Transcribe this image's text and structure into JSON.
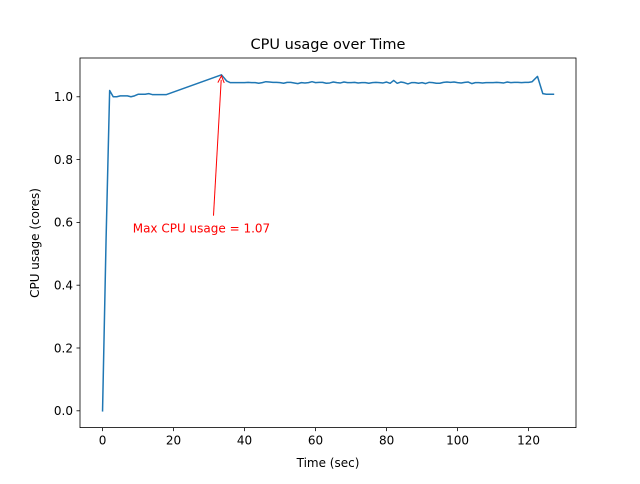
{
  "chart_data": {
    "type": "line",
    "title": "CPU usage over Time",
    "xlabel": "Time (sec)",
    "ylabel": "CPU usage (cores)",
    "xlim": [
      -6.35,
      133.35
    ],
    "ylim": [
      -0.0535,
      1.1235
    ],
    "xticks": [
      0,
      20,
      40,
      60,
      80,
      100,
      120
    ],
    "xtick_labels": [
      "0",
      "20",
      "40",
      "60",
      "80",
      "100",
      "120"
    ],
    "yticks": [
      0.0,
      0.2,
      0.4,
      0.6,
      0.8,
      1.0
    ],
    "ytick_labels": [
      "0.0",
      "0.2",
      "0.4",
      "0.6",
      "0.8",
      "1.0"
    ],
    "grid": false,
    "series": [
      {
        "color": "#1f77b4",
        "x": [
          0,
          1,
          2,
          3,
          4,
          5,
          6,
          7,
          8,
          9,
          10,
          11,
          12,
          13,
          14,
          15,
          16,
          17,
          18,
          33.5,
          35,
          36,
          37,
          38,
          39,
          40,
          41,
          42,
          43,
          44,
          45,
          46,
          47,
          48,
          49,
          50,
          51,
          52,
          53,
          54,
          55,
          56,
          57,
          58,
          59,
          60,
          61,
          62,
          63,
          64,
          65,
          66,
          67,
          68,
          69,
          70,
          71,
          72,
          73,
          74,
          75,
          76,
          77,
          78,
          79,
          80,
          81,
          82,
          83,
          84,
          85,
          86,
          87,
          88,
          89,
          90,
          91,
          92,
          93,
          94,
          95,
          96,
          97,
          98,
          99,
          100,
          101,
          102,
          103,
          104,
          105,
          106,
          107,
          108,
          109,
          110,
          111,
          112,
          113,
          114,
          115,
          116,
          117,
          118,
          119,
          120,
          121,
          122.5,
          124,
          125,
          126,
          127
        ],
        "y": [
          0.0,
          0.55,
          1.02,
          1.0,
          1.0,
          1.003,
          1.003,
          1.003,
          1.0,
          1.003,
          1.008,
          1.008,
          1.008,
          1.01,
          1.007,
          1.007,
          1.007,
          1.007,
          1.007,
          1.07,
          1.05,
          1.045,
          1.045,
          1.045,
          1.045,
          1.045,
          1.046,
          1.045,
          1.045,
          1.043,
          1.045,
          1.048,
          1.047,
          1.046,
          1.046,
          1.045,
          1.043,
          1.046,
          1.046,
          1.044,
          1.042,
          1.045,
          1.044,
          1.045,
          1.048,
          1.045,
          1.046,
          1.046,
          1.043,
          1.044,
          1.047,
          1.045,
          1.044,
          1.047,
          1.045,
          1.045,
          1.046,
          1.044,
          1.045,
          1.045,
          1.043,
          1.045,
          1.046,
          1.045,
          1.044,
          1.047,
          1.043,
          1.052,
          1.043,
          1.047,
          1.045,
          1.041,
          1.045,
          1.045,
          1.043,
          1.045,
          1.042,
          1.046,
          1.045,
          1.043,
          1.043,
          1.046,
          1.047,
          1.046,
          1.047,
          1.045,
          1.044,
          1.046,
          1.047,
          1.042,
          1.045,
          1.045,
          1.044,
          1.045,
          1.045,
          1.045,
          1.046,
          1.045,
          1.044,
          1.047,
          1.045,
          1.046,
          1.046,
          1.045,
          1.046,
          1.046,
          1.048,
          1.065,
          1.01,
          1.008,
          1.008,
          1.008
        ]
      }
    ],
    "annotation": {
      "text": "Max CPU usage = 1.07",
      "color": "#ff0000",
      "point": [
        33.5,
        1.07
      ],
      "text_anchor": [
        8.5,
        0.58
      ]
    }
  }
}
